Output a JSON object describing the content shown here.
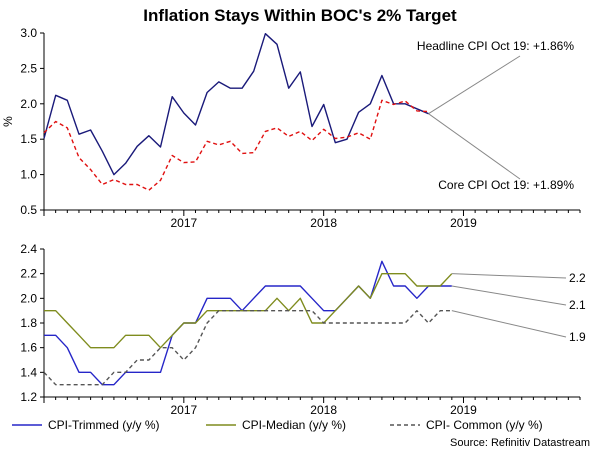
{
  "title": "Inflation Stays Within BOC's 2% Target",
  "source": "Source: Refinitiv Datastream",
  "colors": {
    "headline": "#1a1a7a",
    "core": "#e01010",
    "trimmed": "#2626c8",
    "median": "#7f8c1e",
    "common": "#555555",
    "axis": "#000000",
    "annotation_line": "#888888"
  },
  "chart_data": [
    {
      "type": "line",
      "ylabel": "%",
      "ylim": [
        0.5,
        3.0
      ],
      "yticks": [
        "3.0",
        "2.5",
        "2.0",
        "1.5",
        "1.0",
        "0.5"
      ],
      "xlim": [
        0,
        46
      ],
      "x_labels": [
        {
          "label": "2017",
          "at": 12
        },
        {
          "label": "2018",
          "at": 24
        },
        {
          "label": "2019",
          "at": 36
        }
      ],
      "annotations": [
        {
          "text": "Headline CPI Oct 19: +1.86%",
          "series": "headline"
        },
        {
          "text": "Core CPI Oct 19: +1.89%",
          "series": "core"
        }
      ],
      "series": [
        {
          "id": "headline",
          "style": "solid",
          "values": [
            1.51,
            2.12,
            2.05,
            1.57,
            1.63,
            1.33,
            1.0,
            1.16,
            1.4,
            1.55,
            1.39,
            2.1,
            1.87,
            1.7,
            2.16,
            2.31,
            2.22,
            2.22,
            2.46,
            2.99,
            2.84,
            2.22,
            2.45,
            1.68,
            1.99,
            1.45,
            1.5,
            1.88,
            2.0,
            2.4,
            2.0,
            2.0,
            1.93,
            1.86
          ]
        },
        {
          "id": "core",
          "style": "dashed",
          "values": [
            1.59,
            1.75,
            1.66,
            1.24,
            1.07,
            0.86,
            0.93,
            0.86,
            0.86,
            0.78,
            0.92,
            1.27,
            1.17,
            1.18,
            1.47,
            1.42,
            1.47,
            1.3,
            1.31,
            1.61,
            1.66,
            1.54,
            1.61,
            1.48,
            1.64,
            1.51,
            1.53,
            1.59,
            1.5,
            2.05,
            1.99,
            2.04,
            1.9,
            1.89
          ]
        }
      ]
    },
    {
      "type": "line",
      "ylim": [
        1.2,
        2.4
      ],
      "yticks": [
        "2.4",
        "2.2",
        "2.0",
        "1.8",
        "1.6",
        "1.4",
        "1.2"
      ],
      "xlim": [
        0,
        46
      ],
      "x_labels": [
        {
          "label": "2017",
          "at": 12
        },
        {
          "label": "2018",
          "at": 24
        },
        {
          "label": "2019",
          "at": 36
        }
      ],
      "end_labels": [
        "2.2",
        "2.1",
        "1.9"
      ],
      "series": [
        {
          "id": "trimmed",
          "name": "CPI-Trimmed (y/y %)",
          "style": "solid",
          "values": [
            1.7,
            1.7,
            1.6,
            1.4,
            1.4,
            1.3,
            1.3,
            1.4,
            1.4,
            1.4,
            1.4,
            1.7,
            1.8,
            1.8,
            2.0,
            2.0,
            2.0,
            1.9,
            2.0,
            2.1,
            2.1,
            2.1,
            2.1,
            2.0,
            1.9,
            1.9,
            2.0,
            2.1,
            2.0,
            2.3,
            2.1,
            2.1,
            2.0,
            2.1,
            2.1,
            2.1
          ]
        },
        {
          "id": "median",
          "name": "CPI-Median (y/y %)",
          "style": "solid",
          "values": [
            1.9,
            1.9,
            1.8,
            1.7,
            1.6,
            1.6,
            1.6,
            1.7,
            1.7,
            1.7,
            1.6,
            1.7,
            1.8,
            1.8,
            1.9,
            1.9,
            1.9,
            1.9,
            1.9,
            1.9,
            2.0,
            1.9,
            2.0,
            1.8,
            1.8,
            1.9,
            2.0,
            2.1,
            2.0,
            2.2,
            2.2,
            2.2,
            2.1,
            2.1,
            2.1,
            2.2
          ]
        },
        {
          "id": "common",
          "name": "CPI- Common (y/y %)",
          "style": "dashed",
          "values": [
            1.4,
            1.3,
            1.3,
            1.3,
            1.3,
            1.3,
            1.4,
            1.4,
            1.5,
            1.5,
            1.6,
            1.6,
            1.5,
            1.6,
            1.8,
            1.9,
            1.9,
            1.9,
            1.9,
            1.9,
            1.9,
            1.9,
            1.9,
            1.9,
            1.8,
            1.8,
            1.8,
            1.8,
            1.8,
            1.8,
            1.8,
            1.8,
            1.9,
            1.8,
            1.9,
            1.9
          ]
        }
      ]
    }
  ]
}
